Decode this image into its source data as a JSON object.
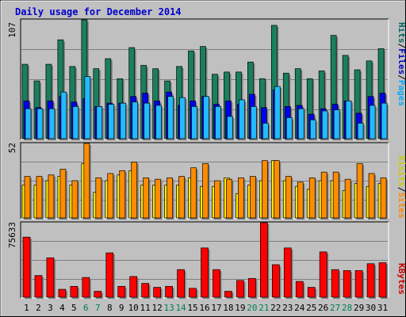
{
  "chart_data": [
    {
      "type": "bar",
      "title": "Daily usage for December 2014",
      "ymax_label": "107",
      "legend": [
        {
          "label": "Hits",
          "color": "#006666"
        },
        {
          "label": "Files",
          "color": "#0000cc"
        },
        {
          "label": "Pages",
          "color": "#00aaff"
        }
      ],
      "categories": [
        "1",
        "2",
        "3",
        "4",
        "5",
        "6",
        "7",
        "8",
        "9",
        "10",
        "11",
        "12",
        "13",
        "14",
        "15",
        "16",
        "17",
        "18",
        "19",
        "20",
        "21",
        "22",
        "23",
        "24",
        "25",
        "26",
        "27",
        "28",
        "29",
        "30",
        "31"
      ],
      "weekend_days": [
        "6",
        "7",
        "13",
        "14",
        "20",
        "21",
        "27",
        "28"
      ],
      "ylim": [
        0,
        107
      ],
      "series": [
        {
          "name": "Hits",
          "color": "#1a7f5e",
          "values": [
            67,
            52,
            67,
            89,
            65,
            107,
            63,
            72,
            54,
            82,
            66,
            63,
            52,
            65,
            79,
            83,
            58,
            60,
            60,
            69,
            54,
            102,
            59,
            63,
            54,
            61,
            93,
            75,
            62,
            70,
            81
          ]
        },
        {
          "name": "Files",
          "color": "#0000ee",
          "values": [
            34,
            28,
            34,
            38,
            33,
            36,
            29,
            32,
            32,
            38,
            41,
            34,
            42,
            30,
            34,
            38,
            31,
            34,
            31,
            40,
            28,
            44,
            29,
            30,
            22,
            27,
            31,
            34,
            23,
            38,
            41
          ]
        },
        {
          "name": "Pages",
          "color": "#22bbff",
          "values": [
            27,
            27,
            27,
            42,
            29,
            56,
            29,
            31,
            32,
            33,
            32,
            30,
            38,
            37,
            29,
            38,
            29,
            20,
            35,
            29,
            14,
            47,
            19,
            27,
            17,
            25,
            26,
            34,
            14,
            30,
            32
          ]
        }
      ]
    },
    {
      "type": "bar",
      "ymax_label": "52",
      "legend": [
        {
          "label": "Visits",
          "color": "#cccc00"
        },
        {
          "label": "Sites",
          "color": "#ff8800"
        }
      ],
      "ylim": [
        0,
        52
      ],
      "series": [
        {
          "name": "Visits",
          "color": "#ffee00",
          "values": [
            23,
            23,
            26,
            29,
            23,
            38,
            18,
            26,
            30,
            33,
            23,
            23,
            23,
            23,
            28,
            22,
            22,
            28,
            17,
            23,
            26,
            40,
            26,
            22,
            20,
            26,
            26,
            19,
            24,
            22,
            24
          ]
        },
        {
          "name": "Sites",
          "color": "#ff8c00",
          "values": [
            29,
            29,
            30,
            34,
            26,
            52,
            28,
            31,
            33,
            39,
            28,
            27,
            28,
            29,
            35,
            38,
            26,
            27,
            28,
            29,
            40,
            40,
            29,
            25,
            28,
            32,
            32,
            27,
            38,
            31,
            28
          ]
        }
      ]
    },
    {
      "type": "bar",
      "ymax_label": "75633",
      "legend": [
        {
          "label": "KBytes",
          "color": "#cc0000"
        }
      ],
      "ylim": [
        0,
        75633
      ],
      "series": [
        {
          "name": "KBytes",
          "color": "#ff0000",
          "values": [
            61000,
            22000,
            40000,
            8000,
            11000,
            20000,
            6000,
            45000,
            11000,
            21000,
            14000,
            10000,
            11000,
            28000,
            9000,
            50000,
            28000,
            6000,
            17000,
            19000,
            75633,
            33000,
            50000,
            16000,
            10000,
            46000,
            28000,
            27000,
            27000,
            34000,
            35000
          ]
        }
      ]
    }
  ]
}
